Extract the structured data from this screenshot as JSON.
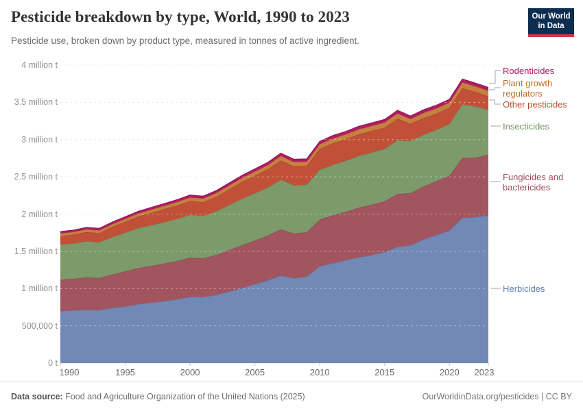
{
  "header": {
    "title": "Pesticide breakdown by type, World, 1990 to 2023",
    "subtitle": "Pesticide use, broken down by product type, measured in tonnes of active ingredient."
  },
  "logo": {
    "line1": "Our World",
    "line2": "in Data",
    "bg_color": "#0d2d51",
    "accent_color": "#d9333d"
  },
  "footer": {
    "source_label": "Data source:",
    "source_text": " Food and Agriculture Organization of the United Nations (2025)",
    "right_text": "OurWorldinData.org/pesticides | CC BY"
  },
  "chart_data": {
    "type": "area",
    "stacked": true,
    "unit": "tonnes of active ingredient",
    "x": [
      1990,
      1991,
      1992,
      1993,
      1994,
      1995,
      1996,
      1997,
      1998,
      1999,
      2000,
      2001,
      2002,
      2003,
      2004,
      2005,
      2006,
      2007,
      2008,
      2009,
      2010,
      2011,
      2012,
      2013,
      2014,
      2015,
      2016,
      2017,
      2018,
      2019,
      2020,
      2021,
      2022,
      2023
    ],
    "xticks": [
      1990,
      1995,
      2000,
      2005,
      2010,
      2015,
      2020,
      2023
    ],
    "ylim": [
      0,
      4000000
    ],
    "yticks": [
      {
        "value": 0,
        "label": "0 t"
      },
      {
        "value": 500000,
        "label": "500,000 t"
      },
      {
        "value": 1000000,
        "label": "1 million t"
      },
      {
        "value": 1500000,
        "label": "1.5 million t"
      },
      {
        "value": 2000000,
        "label": "2 million t"
      },
      {
        "value": 2500000,
        "label": "2.5 million t"
      },
      {
        "value": 3000000,
        "label": "3 million t"
      },
      {
        "value": 3500000,
        "label": "3.5 million t"
      },
      {
        "value": 4000000,
        "label": "4 million t"
      }
    ],
    "series": [
      {
        "key": "herbicides",
        "name": "Herbicides",
        "color": "#7189b4",
        "stroke": "#5c76a5",
        "label_color": "#5b7cb0",
        "values": [
          700000,
          705000,
          715000,
          710000,
          740000,
          760000,
          790000,
          810000,
          830000,
          855000,
          890000,
          885000,
          915000,
          960000,
          1005000,
          1060000,
          1110000,
          1175000,
          1140000,
          1160000,
          1300000,
          1340000,
          1380000,
          1420000,
          1450000,
          1490000,
          1560000,
          1580000,
          1660000,
          1720000,
          1780000,
          1950000,
          1960000,
          1980000
        ]
      },
      {
        "key": "fungicides",
        "name": "Fungicides and bactericides",
        "color": "#a3555f",
        "stroke": "#8e434e",
        "label_color": "#a04c58",
        "values": [
          420000,
          425000,
          435000,
          430000,
          450000,
          470000,
          485000,
          495000,
          505000,
          515000,
          525000,
          520000,
          535000,
          555000,
          575000,
          585000,
          600000,
          620000,
          600000,
          595000,
          625000,
          640000,
          650000,
          665000,
          675000,
          680000,
          710000,
          700000,
          710000,
          720000,
          735000,
          805000,
          795000,
          820000
        ]
      },
      {
        "key": "insecticides",
        "name": "Insecticides",
        "color": "#7d9a6b",
        "stroke": "#6a8a57",
        "label_color": "#6e9557",
        "values": [
          470000,
          475000,
          485000,
          480000,
          500000,
          520000,
          535000,
          545000,
          555000,
          565000,
          575000,
          570000,
          585000,
          605000,
          625000,
          635000,
          645000,
          665000,
          645000,
          640000,
          670000,
          680000,
          685000,
          695000,
          700000,
          705000,
          720000,
          700000,
          695000,
          690000,
          695000,
          720000,
          690000,
          600000
        ]
      },
      {
        "key": "other",
        "name": "Other pesticides",
        "color": "#c05138",
        "stroke": "#a84127",
        "label_color": "#bd4b28",
        "values": [
          115000,
          118000,
          122000,
          125000,
          135000,
          145000,
          155000,
          165000,
          175000,
          180000,
          185000,
          185000,
          195000,
          210000,
          225000,
          235000,
          245000,
          260000,
          255000,
          250000,
          280000,
          290000,
          290000,
          290000,
          290000,
          285000,
          290000,
          230000,
          225000,
          220000,
          215000,
          215000,
          195000,
          180000
        ]
      },
      {
        "key": "pgr",
        "name": "Plant growth regulators",
        "color": "#c6803f",
        "stroke": "#b06d31",
        "label_color": "#bd6f2d",
        "values": [
          35000,
          36000,
          37000,
          37000,
          39000,
          41000,
          42000,
          44000,
          45000,
          47000,
          48000,
          48000,
          50000,
          52000,
          54000,
          56000,
          58000,
          60000,
          59000,
          59000,
          62000,
          64000,
          65000,
          67000,
          68000,
          69000,
          71000,
          66000,
          68000,
          70000,
          72000,
          78000,
          74000,
          75000
        ]
      },
      {
        "key": "rodenticides",
        "name": "Rodenticides",
        "color": "#b01e62",
        "stroke": "#991453",
        "label_color": "#ab1864",
        "values": [
          25000,
          25000,
          26000,
          26000,
          27000,
          28000,
          29000,
          30000,
          30000,
          31000,
          32000,
          32000,
          33000,
          34000,
          35000,
          36000,
          36000,
          37000,
          37000,
          37000,
          38000,
          39000,
          39000,
          40000,
          40000,
          41000,
          41000,
          40000,
          41000,
          42000,
          43000,
          45000,
          44000,
          45000
        ]
      }
    ],
    "legend": [
      {
        "key": "rodenticides",
        "label": "Rodenticides"
      },
      {
        "key": "pgr",
        "label": "Plant growth regulators"
      },
      {
        "key": "other",
        "label": "Other pesticides"
      },
      {
        "key": "insecticides",
        "label": "Insecticides"
      },
      {
        "key": "fungicides",
        "label": "Fungicides and bactericides"
      },
      {
        "key": "herbicides",
        "label": "Herbicides"
      }
    ]
  }
}
